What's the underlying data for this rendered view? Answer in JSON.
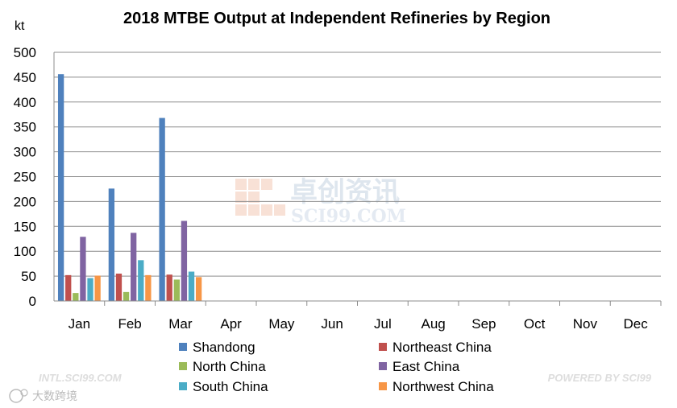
{
  "chart_data": {
    "type": "bar",
    "title": "2018 MTBE Output at Independent Refineries by Region",
    "ylabel": "kt",
    "xlabel": "",
    "ylim": [
      0,
      500
    ],
    "yticks": [
      0,
      50,
      100,
      150,
      200,
      250,
      300,
      350,
      400,
      450,
      500
    ],
    "grid": true,
    "legend_position": "bottom",
    "categories": [
      "Jan",
      "Feb",
      "Mar",
      "Apr",
      "May",
      "Jun",
      "Jul",
      "Aug",
      "Sep",
      "Oct",
      "Nov",
      "Dec"
    ],
    "series": [
      {
        "name": "Shandong",
        "color": "#4f81bd",
        "values": [
          456,
          226,
          368,
          null,
          null,
          null,
          null,
          null,
          null,
          null,
          null,
          null
        ]
      },
      {
        "name": "Northeast China",
        "color": "#c0504d",
        "values": [
          52,
          55,
          53,
          null,
          null,
          null,
          null,
          null,
          null,
          null,
          null,
          null
        ]
      },
      {
        "name": "North China",
        "color": "#9bbb59",
        "values": [
          16,
          18,
          43,
          null,
          null,
          null,
          null,
          null,
          null,
          null,
          null,
          null
        ]
      },
      {
        "name": "East China",
        "color": "#8064a2",
        "values": [
          129,
          137,
          161,
          null,
          null,
          null,
          null,
          null,
          null,
          null,
          null,
          null
        ]
      },
      {
        "name": "South China",
        "color": "#4bacc6",
        "values": [
          46,
          82,
          59,
          null,
          null,
          null,
          null,
          null,
          null,
          null,
          null,
          null
        ]
      },
      {
        "name": "Northwest China",
        "color": "#f79646",
        "values": [
          51,
          52,
          48,
          null,
          null,
          null,
          null,
          null,
          null,
          null,
          null,
          null
        ]
      }
    ]
  },
  "watermark": {
    "cn": "卓创资讯",
    "en": "SCI99.COM",
    "footer_left": "INTL.SCI99.COM",
    "footer_right": "POWERED BY SCI99",
    "corner_cn": "大数跨境"
  }
}
